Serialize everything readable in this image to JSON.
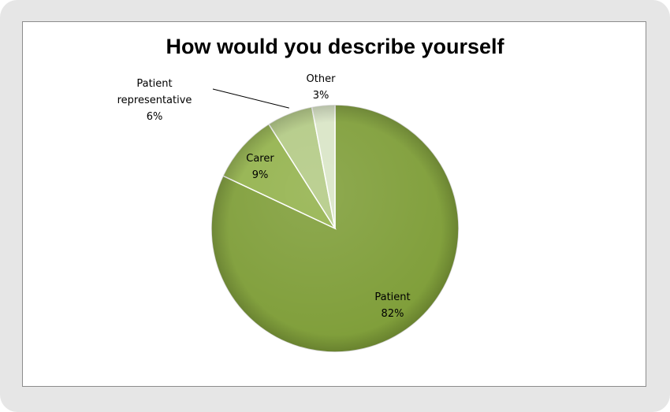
{
  "chart_data": {
    "type": "pie",
    "title": "How would you describe yourself",
    "slices": [
      {
        "label": "Patient",
        "value": 82,
        "display": "82%",
        "color": "#7f9e39"
      },
      {
        "label": "Carer",
        "value": 9,
        "display": "9%",
        "color": "#93b24c"
      },
      {
        "label": "Patient representative",
        "label_lines": [
          "Patient",
          "representative"
        ],
        "value": 6,
        "display": "6%",
        "color": "#b3ca85"
      },
      {
        "label": "Other",
        "value": 3,
        "display": "3%",
        "color": "#d9e5c6"
      }
    ],
    "legend": "none",
    "style": "3d-bevel"
  }
}
